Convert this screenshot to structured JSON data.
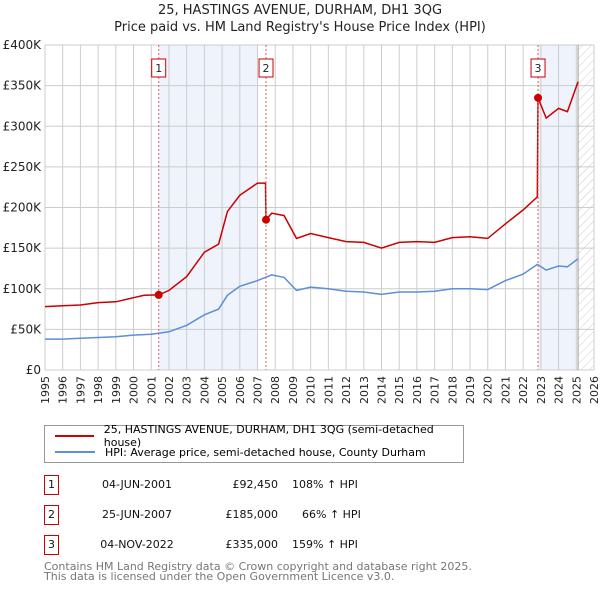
{
  "chart_data": {
    "type": "line",
    "title": "25, HASTINGS AVENUE, DURHAM, DH1 3QG",
    "subtitle": "Price paid vs. HM Land Registry's House Price Index (HPI)",
    "xlim": [
      1995,
      2026
    ],
    "ylim": [
      0,
      400000
    ],
    "yticks": [
      {
        "v": 0,
        "label": "£0"
      },
      {
        "v": 50000,
        "label": "£50K"
      },
      {
        "v": 100000,
        "label": "£100K"
      },
      {
        "v": 150000,
        "label": "£150K"
      },
      {
        "v": 200000,
        "label": "£200K"
      },
      {
        "v": 250000,
        "label": "£250K"
      },
      {
        "v": 300000,
        "label": "£300K"
      },
      {
        "v": 350000,
        "label": "£350K"
      },
      {
        "v": 400000,
        "label": "£400K"
      }
    ],
    "xticks": [
      "1995",
      "1996",
      "1997",
      "1998",
      "1999",
      "2000",
      "2001",
      "2002",
      "2003",
      "2004",
      "2005",
      "2006",
      "2007",
      "2008",
      "2009",
      "2010",
      "2011",
      "2012",
      "2013",
      "2014",
      "2015",
      "2016",
      "2017",
      "2018",
      "2019",
      "2020",
      "2021",
      "2022",
      "2023",
      "2024",
      "2025",
      "2026"
    ],
    "grid": true,
    "legend_position": "below",
    "colors": {
      "price": "#cc0000",
      "hpi": "#5b8fd6"
    },
    "series": [
      {
        "name": "25, HASTINGS AVENUE, DURHAM, DH1 3QG (semi-detached house)",
        "color": "#cc0000",
        "x": [
          1995,
          1996,
          1997,
          1998,
          1999,
          2000,
          2000.6,
          2001.42,
          2002,
          2003,
          2004,
          2004.8,
          2005.3,
          2006,
          2007,
          2007.45,
          2007.48,
          2007.8,
          2008.5,
          2009.2,
          2010,
          2011,
          2012,
          2013,
          2014,
          2015,
          2016,
          2017,
          2018,
          2019,
          2020,
          2021,
          2022,
          2022.8,
          2022.84,
          2023.3,
          2024,
          2024.5,
          2025.1
        ],
        "y": [
          78000,
          79000,
          80000,
          83000,
          84000,
          89000,
          92000,
          92450,
          98000,
          115000,
          145000,
          155000,
          195000,
          215000,
          230000,
          230000,
          185000,
          193000,
          190000,
          162000,
          168000,
          163000,
          158000,
          157000,
          150000,
          157000,
          158000,
          157000,
          163000,
          164000,
          162000,
          180000,
          197000,
          213000,
          335000,
          310000,
          322000,
          318000,
          355000
        ]
      },
      {
        "name": "HPI: Average price, semi-detached house, County Durham",
        "color": "#5b8fd6",
        "x": [
          1995,
          1996,
          1997,
          1998,
          1999,
          2000,
          2001,
          2002,
          2003,
          2004,
          2004.8,
          2005.3,
          2006,
          2007,
          2007.8,
          2008.5,
          2009.2,
          2010,
          2011,
          2012,
          2013,
          2014,
          2015,
          2016,
          2017,
          2018,
          2019,
          2020,
          2021,
          2022,
          2022.8,
          2023.3,
          2024,
          2024.5,
          2025.1
        ],
        "y": [
          38000,
          38000,
          39000,
          40000,
          41000,
          43000,
          44000,
          47000,
          55000,
          68000,
          75000,
          92000,
          103000,
          110000,
          117000,
          114000,
          98000,
          102000,
          100000,
          97000,
          96000,
          93000,
          96000,
          96000,
          97000,
          100000,
          100000,
          99000,
          110000,
          118000,
          130000,
          123000,
          128000,
          127000,
          137000
        ]
      }
    ],
    "sales": [
      {
        "num": "1",
        "x": 2001.42,
        "price": 92450,
        "date": "04-JUN-2001",
        "price_label": "£92,450",
        "hpi": "108% ↑ HPI"
      },
      {
        "num": "2",
        "x": 2007.48,
        "price": 185000,
        "date": "25-JUN-2007",
        "price_label": "£185,000",
        "hpi": "66% ↑ HPI"
      },
      {
        "num": "3",
        "x": 2022.84,
        "price": 335000,
        "date": "04-NOV-2022",
        "price_label": "£335,000",
        "hpi": "159% ↑ HPI"
      }
    ],
    "shaded_ranges": [
      [
        2001.42,
        2007.0
      ],
      [
        2022.84,
        2025.0
      ]
    ],
    "forecast_from": 2025.1
  },
  "footer": {
    "line1": "Contains HM Land Registry data © Crown copyright and database right 2025.",
    "line2": "This data is licensed under the Open Government Licence v3.0."
  }
}
